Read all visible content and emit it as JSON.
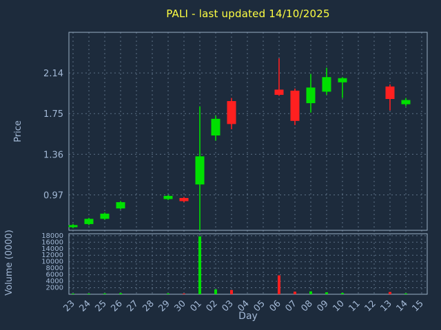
{
  "window": {
    "title": "PALI - last updated 14/10/2025"
  },
  "chart_data": {
    "type": "candlestick",
    "title": "PALI - last updated 14/10/2025",
    "xlabel": "Day",
    "ylabel": "Price",
    "volume_label": "Volume (0000)",
    "grid": "dotted",
    "legend_position": "none",
    "x_categories": [
      "23",
      "24",
      "25",
      "26",
      "27",
      "28",
      "29",
      "30",
      "01",
      "02",
      "03",
      "04",
      "05",
      "06",
      "07",
      "08",
      "09",
      "10",
      "11",
      "12",
      "13",
      "14",
      "15"
    ],
    "price_ticks": [
      0.97,
      1.36,
      1.75,
      2.14
    ],
    "price_range": [
      0.63,
      2.53
    ],
    "volume_ticks": [
      2000,
      4000,
      6000,
      8000,
      10000,
      12000,
      14000,
      16000,
      18000
    ],
    "volume_range": [
      0,
      18600
    ],
    "colors": {
      "background": "#1d2b3c",
      "title": "#ffff42",
      "axis_text": "#a3b9d6",
      "grid": "#5d7186",
      "frame": "#9cb0c6",
      "up": "#00e000",
      "down": "#ff2020"
    },
    "candles": [
      {
        "day": "23",
        "open": 0.66,
        "high": 0.69,
        "low": 0.65,
        "close": 0.68,
        "volume": 150
      },
      {
        "day": "24",
        "open": 0.69,
        "high": 0.75,
        "low": 0.68,
        "close": 0.74,
        "volume": 200
      },
      {
        "day": "25",
        "open": 0.74,
        "high": 0.8,
        "low": 0.73,
        "close": 0.79,
        "volume": 250
      },
      {
        "day": "26",
        "open": 0.84,
        "high": 0.91,
        "low": 0.83,
        "close": 0.9,
        "volume": 350
      },
      {
        "day": "29",
        "open": 0.93,
        "high": 0.97,
        "low": 0.92,
        "close": 0.96,
        "volume": 250
      },
      {
        "day": "30",
        "open": 0.94,
        "high": 0.95,
        "low": 0.9,
        "close": 0.91,
        "volume": 200
      },
      {
        "day": "01",
        "open": 1.07,
        "high": 1.82,
        "low": 0.63,
        "close": 1.34,
        "volume": 17800
      },
      {
        "day": "02",
        "open": 1.54,
        "high": 1.73,
        "low": 1.49,
        "close": 1.7,
        "volume": 1500
      },
      {
        "day": "03",
        "open": 1.87,
        "high": 1.9,
        "low": 1.6,
        "close": 1.65,
        "volume": 1300
      },
      {
        "day": "06",
        "open": 1.98,
        "high": 2.28,
        "low": 1.92,
        "close": 1.93,
        "volume": 5800
      },
      {
        "day": "07",
        "open": 1.97,
        "high": 1.99,
        "low": 1.64,
        "close": 1.68,
        "volume": 800
      },
      {
        "day": "08",
        "open": 1.85,
        "high": 2.13,
        "low": 1.76,
        "close": 2.0,
        "volume": 900
      },
      {
        "day": "09",
        "open": 1.96,
        "high": 2.19,
        "low": 1.93,
        "close": 2.1,
        "volume": 600
      },
      {
        "day": "10",
        "open": 2.05,
        "high": 2.1,
        "low": 1.9,
        "close": 2.09,
        "volume": 400
      },
      {
        "day": "13",
        "open": 2.01,
        "high": 2.03,
        "low": 1.78,
        "close": 1.89,
        "volume": 700
      },
      {
        "day": "14",
        "open": 1.84,
        "high": 1.9,
        "low": 1.82,
        "close": 1.88,
        "volume": 250
      }
    ]
  }
}
